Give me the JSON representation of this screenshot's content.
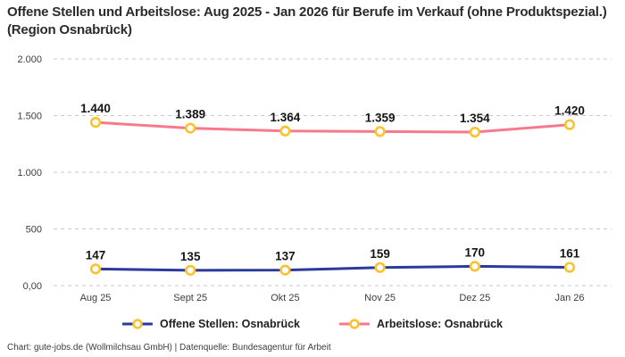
{
  "title": "Offene Stellen und Arbeitslose: Aug 2025 - Jan 2026 für Berufe im Verkauf (ohne Produktspezial.) (Region Osnabrück)",
  "footer": "Chart: gute-jobs.de (Wollmilchsau GmbH) | Datenquelle: Bundesagentur für Arbeit",
  "chart_data": {
    "type": "line",
    "title": "Offene Stellen und Arbeitslose: Aug 2025 - Jan 2026 für Berufe im Verkauf (ohne Produktspezial.) (Region Osnabrück)",
    "categories": [
      "Aug 25",
      "Sept 25",
      "Okt 25",
      "Nov 25",
      "Dez 25",
      "Jan 26"
    ],
    "series": [
      {
        "name": "Offene Stellen: Osnabrück",
        "color": "#2b3a9b",
        "values": [
          147,
          135,
          137,
          159,
          170,
          161
        ],
        "labels": [
          "147",
          "135",
          "137",
          "159",
          "170",
          "161"
        ]
      },
      {
        "name": "Arbeitslose: Osnabrück",
        "color": "#f9798c",
        "values": [
          1440,
          1389,
          1364,
          1359,
          1354,
          1420
        ],
        "labels": [
          "1.440",
          "1.389",
          "1.364",
          "1.359",
          "1.354",
          "1.420"
        ]
      }
    ],
    "y_ticks": [
      {
        "value": 0,
        "label": "0,00"
      },
      {
        "value": 500,
        "label": "500"
      },
      {
        "value": 1000,
        "label": "1.000"
      },
      {
        "value": 1500,
        "label": "1.500"
      },
      {
        "value": 2000,
        "label": "2.000"
      }
    ],
    "ylim": [
      0,
      2000
    ],
    "grid": "horizontal dashed",
    "legend_position": "bottom",
    "marker": {
      "fill": "#ffffff",
      "stroke": "#fcc22d"
    }
  }
}
